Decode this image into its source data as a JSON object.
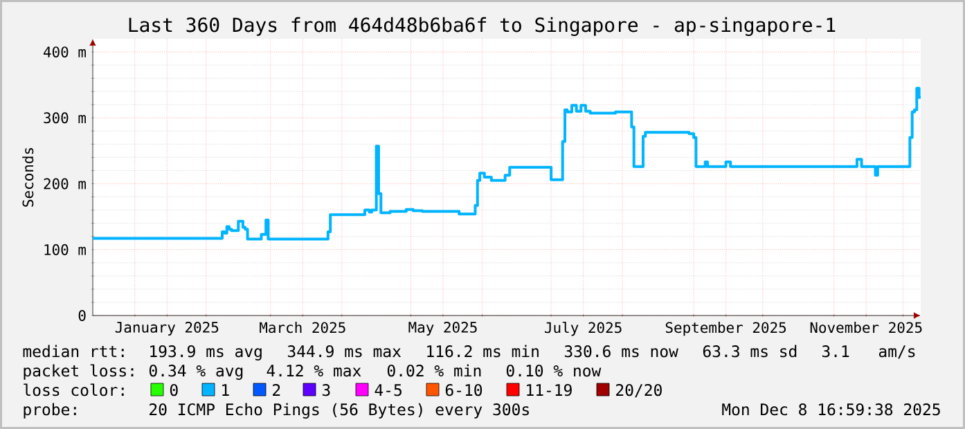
{
  "chart_data": {
    "type": "step",
    "title": "Last 360 Days from 464d48b6ba6f to Singapore - ap-singapore-1",
    "ylabel": "Seconds",
    "xlim": [
      "2024-12-13T17:00",
      "2025-12-08T17:00"
    ],
    "ylim": [
      0,
      420
    ],
    "xticks": [
      {
        "value": "2025-01-01",
        "label": null
      },
      {
        "value": "2025-01-15",
        "label": "January 2025"
      },
      {
        "value": "2025-02-01",
        "label": null
      },
      {
        "value": "2025-03-01",
        "label": null
      },
      {
        "value": "2025-03-15",
        "label": "March 2025"
      },
      {
        "value": "2025-04-01",
        "label": null
      },
      {
        "value": "2025-05-01",
        "label": null
      },
      {
        "value": "2025-05-15",
        "label": "May 2025"
      },
      {
        "value": "2025-06-01",
        "label": null
      },
      {
        "value": "2025-07-01",
        "label": null
      },
      {
        "value": "2025-07-15",
        "label": "July 2025"
      },
      {
        "value": "2025-08-01",
        "label": null
      },
      {
        "value": "2025-09-01",
        "label": null
      },
      {
        "value": "2025-09-15",
        "label": "September 2025"
      },
      {
        "value": "2025-10-01",
        "label": null
      },
      {
        "value": "2025-11-01",
        "label": null
      },
      {
        "value": "2025-11-15",
        "label": "November 2025"
      },
      {
        "value": "2025-12-01",
        "label": null
      }
    ],
    "yticks": [
      0,
      {
        "value": 100,
        "label": "100 m"
      },
      {
        "value": 200,
        "label": "200 m"
      },
      {
        "value": 300,
        "label": "300 m"
      },
      {
        "value": 400,
        "label": "400 m"
      }
    ],
    "grid": true,
    "series": [
      {
        "color": "#00b4ff",
        "x": [
          "2024-12-13T17:00",
          "2025-02-08",
          "2025-02-09",
          "2025-02-10",
          "2025-02-11",
          "2025-02-12",
          "2025-02-15",
          "2025-02-17",
          "2025-02-18",
          "2025-02-19",
          "2025-02-25",
          "2025-02-27",
          "2025-02-28",
          "2025-03-26",
          "2025-03-27",
          "2025-04-11",
          "2025-04-13",
          "2025-04-14",
          "2025-04-16",
          "2025-04-17",
          "2025-04-18",
          "2025-04-22",
          "2025-04-29",
          "2025-05-02",
          "2025-05-06",
          "2025-05-22",
          "2025-05-29",
          "2025-05-30",
          "2025-05-31",
          "2025-06-02",
          "2025-06-05",
          "2025-06-11",
          "2025-06-13",
          "2025-07-01",
          "2025-07-06",
          "2025-07-07",
          "2025-07-08",
          "2025-07-10",
          "2025-07-12",
          "2025-07-14",
          "2025-07-16",
          "2025-07-18",
          "2025-07-27",
          "2025-07-29",
          "2025-08-04",
          "2025-08-05",
          "2025-08-06",
          "2025-08-09",
          "2025-08-10",
          "2025-08-11",
          "2025-08-26",
          "2025-08-30",
          "2025-09-01",
          "2025-09-02",
          "2025-09-06",
          "2025-09-07",
          "2025-09-15",
          "2025-09-17",
          "2025-11-10",
          "2025-11-11",
          "2025-11-13",
          "2025-11-19",
          "2025-11-20",
          "2025-12-03",
          "2025-12-04",
          "2025-12-05",
          "2025-12-06",
          "2025-12-07",
          "2025-12-08",
          "2025-12-08T17:00"
        ],
        "values": [
          117,
          117,
          127,
          125,
          135,
          131,
          129,
          143,
          134,
          131,
          116,
          123,
          145,
          116,
          127,
          153,
          160,
          157,
          160,
          257,
          185,
          156,
          158,
          161,
          159,
          158,
          154,
          167,
          205,
          216,
          210,
          205,
          213,
          225,
          206,
          264,
          312,
          309,
          319,
          310,
          319,
          310,
          307,
          307,
          309,
          309,
          286,
          226,
          226,
          272,
          278,
          278,
          276,
          270,
          226,
          233,
          226,
          233,
          226,
          226,
          237,
          226,
          213,
          226,
          226,
          270,
          309,
          312,
          345,
          331
        ]
      }
    ],
    "annotations": [
      "median rtt:",
      "193.9 ms avg",
      "344.9 ms max",
      "116.2 ms min",
      "330.6 ms now",
      "63.3 ms sd",
      "3.1",
      "am/s",
      "packet loss:",
      "0.34 % avg",
      "4.12 % max",
      "0.02 % min",
      "0.10 % now",
      "loss color:",
      "0",
      "1",
      "2",
      "3",
      "4-5",
      "6-10",
      "11-19",
      "20/20",
      "probe:",
      "20 ICMP Echo Pings (56 Bytes) every 300s",
      "Mon Dec 8 16:59:38 2025"
    ]
  }
}
